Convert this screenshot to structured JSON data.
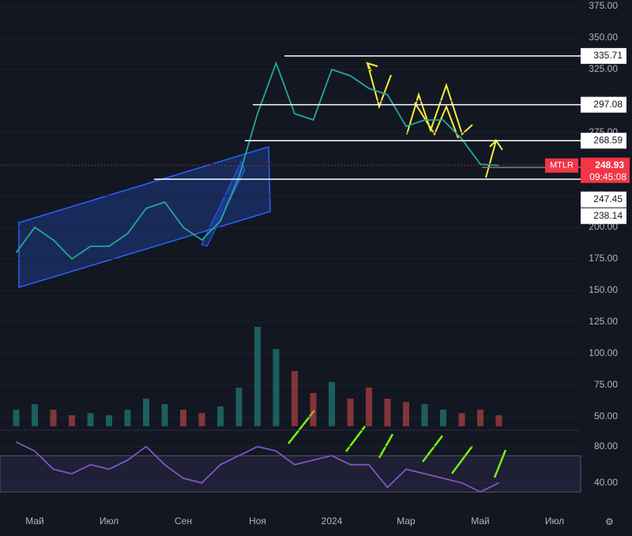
{
  "chart_data": [
    {
      "type": "line",
      "categories": [
        null,
        "Май",
        null,
        null,
        null,
        "Июл",
        null,
        null,
        null,
        "Сен",
        null,
        null,
        null,
        "Ноя",
        null,
        null,
        null,
        "2024",
        null,
        null,
        null,
        "Мар",
        null,
        null,
        null,
        "Май",
        null,
        null,
        null,
        "Июл"
      ],
      "series": [
        {
          "name": "MTLR",
          "color": "#26a69a",
          "values": [
            180,
            200,
            190,
            175,
            185,
            185,
            195,
            215,
            220,
            200,
            190,
            205,
            240,
            290,
            330,
            290,
            285,
            325,
            320,
            310,
            305,
            280,
            285,
            285,
            270,
            250,
            249,
            null,
            null,
            null
          ]
        }
      ],
      "volume": [
        15,
        20,
        15,
        10,
        12,
        10,
        15,
        25,
        20,
        15,
        12,
        18,
        35,
        90,
        70,
        50,
        30,
        40,
        25,
        35,
        25,
        22,
        20,
        15,
        12,
        15,
        10,
        null,
        null,
        null
      ],
      "ylim": [
        42.5,
        380
      ],
      "yticks": [
        {
          "value": 375,
          "label": "375.00"
        },
        {
          "value": 350,
          "label": "350.00"
        },
        {
          "value": 325,
          "label": "325.00"
        },
        {
          "value": 300,
          "label": "300.00"
        },
        {
          "value": 275,
          "label": "275.00"
        },
        {
          "value": 250,
          "label": "250.00"
        },
        {
          "value": 225,
          "label": "225.00"
        },
        {
          "value": 200,
          "label": "200.00"
        },
        {
          "value": 175,
          "label": "175.00"
        },
        {
          "value": 150,
          "label": "150.00"
        },
        {
          "value": 125,
          "label": "125.00"
        },
        {
          "value": 100,
          "label": "100.00"
        },
        {
          "value": 75,
          "label": "75.00"
        },
        {
          "value": 50,
          "label": "50.00"
        }
      ],
      "levels": [
        335.71,
        297.08,
        268.59,
        247.45,
        238.14
      ],
      "last_price": {
        "ticker": "MTLR",
        "value": 248.93,
        "countdown": "09:45:08",
        "color": "#f23645"
      }
    },
    {
      "type": "line",
      "series": [
        {
          "color": "#7e57c2",
          "values": [
            85,
            75,
            55,
            50,
            60,
            55,
            65,
            80,
            60,
            45,
            40,
            60,
            70,
            80,
            75,
            60,
            65,
            70,
            60,
            60,
            35,
            55,
            50,
            45,
            40,
            30,
            40,
            null,
            null,
            null
          ]
        }
      ],
      "ylim": [
        11,
        98
      ],
      "yticks": [
        {
          "value": 80,
          "label": "80.00"
        },
        {
          "value": 40,
          "label": "40.00"
        }
      ],
      "band": [
        30,
        70
      ]
    }
  ]
}
